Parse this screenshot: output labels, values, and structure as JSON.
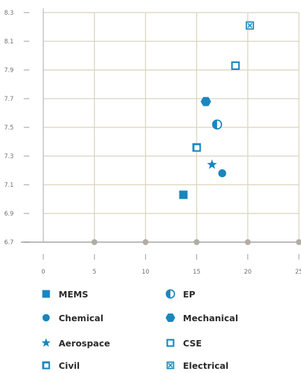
{
  "colors": {
    "marker": "#1a86bd",
    "grid": "#d8d2bc",
    "axis": "#b9b9b9",
    "tick_text": "#6f6f6f",
    "dot": "#b1ada6"
  },
  "chart_data": {
    "type": "scatter",
    "title": "",
    "xlabel": "",
    "ylabel": "",
    "xlim": [
      0,
      25
    ],
    "ylim": [
      6.7,
      8.3
    ],
    "x_ticks": [
      "0",
      "5",
      "10",
      "15",
      "20",
      "25"
    ],
    "y_ticks": [
      "6.7",
      "6.9",
      "7.1",
      "7.3",
      "7.5",
      "7.7",
      "7.9",
      "8.1",
      "8.3"
    ],
    "grid": true,
    "legend_position": "bottom",
    "series": [
      {
        "name": "MEMS",
        "marker": "square-filled",
        "x": 13.7,
        "y": 7.03
      },
      {
        "name": "EP",
        "marker": "circle-half",
        "x": 17.0,
        "y": 7.52
      },
      {
        "name": "Chemical",
        "marker": "circle-filled",
        "x": 17.5,
        "y": 7.18
      },
      {
        "name": "Mechanical",
        "marker": "hexagon-filled",
        "x": 15.9,
        "y": 7.68
      },
      {
        "name": "Aerospace",
        "marker": "star-filled",
        "x": 16.5,
        "y": 7.24
      },
      {
        "name": "CSE",
        "marker": "square-open",
        "x": 18.8,
        "y": 7.93
      },
      {
        "name": "Civil",
        "marker": "square-open-shadow",
        "x": 15.0,
        "y": 7.36
      },
      {
        "name": "Electrical",
        "marker": "square-x",
        "x": 20.2,
        "y": 8.21
      }
    ]
  }
}
